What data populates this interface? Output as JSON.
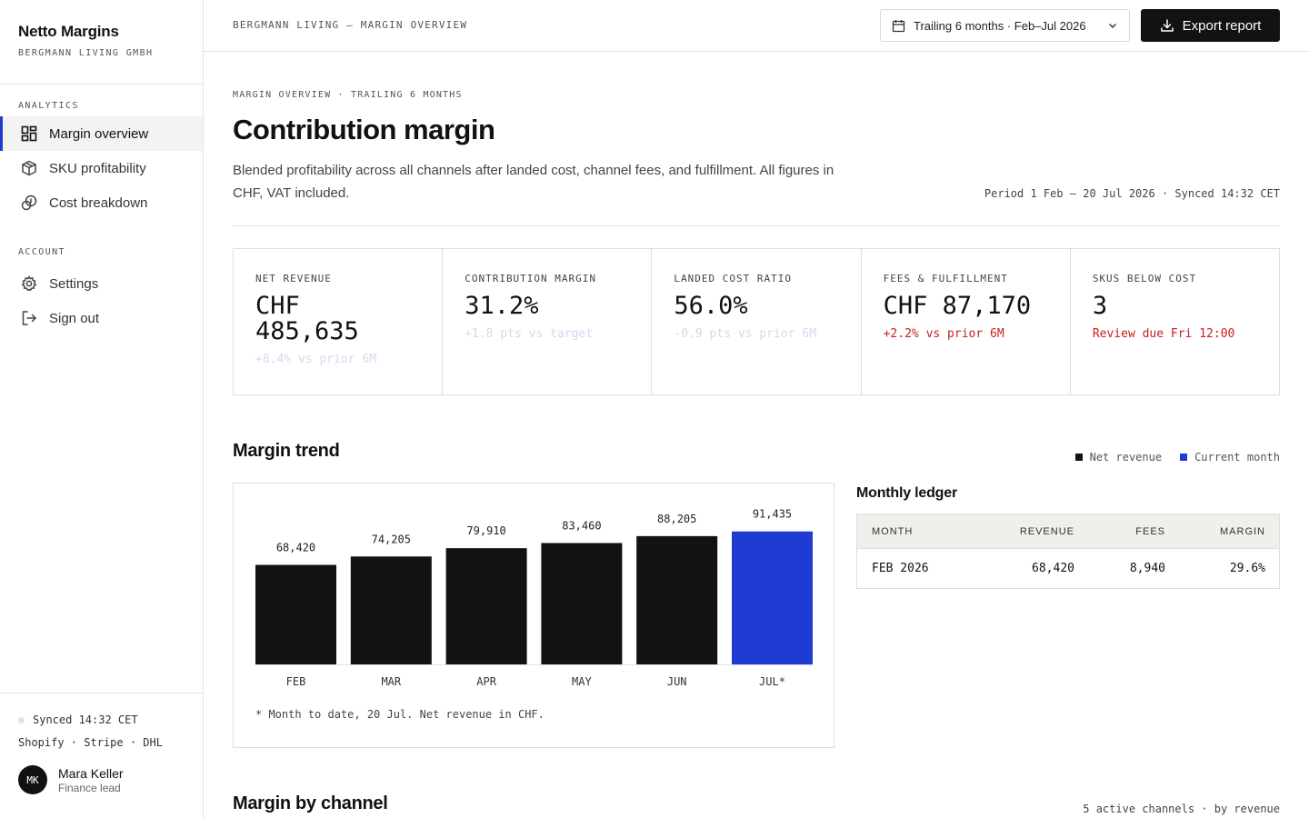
{
  "brand": {
    "name": "Netto Margins",
    "company": "BERGMANN LIVING GMBH"
  },
  "nav": {
    "analytics_label": "ANALYTICS",
    "analytics_items": [
      {
        "label": "Margin overview",
        "icon": "grid-icon",
        "active": true
      },
      {
        "label": "SKU profitability",
        "icon": "box-icon",
        "active": false
      },
      {
        "label": "Cost breakdown",
        "icon": "coins-icon",
        "active": false
      }
    ],
    "account_label": "ACCOUNT",
    "account_items": [
      {
        "label": "Settings",
        "icon": "gear-icon"
      },
      {
        "label": "Sign out",
        "icon": "sign-out-icon"
      }
    ]
  },
  "footer": {
    "sync": "Synced 14:32 CET",
    "integrations": "Shopify · Stripe · DHL",
    "user": {
      "initials": "MK",
      "name": "Mara Keller",
      "role": "Finance lead"
    }
  },
  "topbar": {
    "breadcrumb": "BERGMANN LIVING — MARGIN OVERVIEW",
    "date_range": "Trailing 6 months · Feb–Jul 2026",
    "export_label": "Export report"
  },
  "header": {
    "eyebrow": "MARGIN OVERVIEW · TRAILING 6 MONTHS",
    "title": "Contribution margin",
    "description": "Blended profitability across all channels after landed cost, channel fees, and fulfillment. All figures in CHF, VAT included.",
    "period": "Period 1 Feb – 20 Jul 2026 · Synced 14:32 CET"
  },
  "kpis": [
    {
      "label": "NET REVENUE",
      "value": "CHF 485,635",
      "delta": "+8.4% vs prior 6M",
      "tone": "faint"
    },
    {
      "label": "CONTRIBUTION MARGIN",
      "value": "31.2%",
      "delta": "+1.8 pts vs target",
      "tone": "faint"
    },
    {
      "label": "LANDED COST RATIO",
      "value": "56.0%",
      "delta": "-0.9 pts vs prior 6M",
      "tone": "faint"
    },
    {
      "label": "FEES & FULFILLMENT",
      "value": "CHF 87,170",
      "delta": "+2.2% vs prior 6M",
      "tone": "red"
    },
    {
      "label": "SKUS BELOW COST",
      "value": "3",
      "delta": "Review due Fri 12:00",
      "tone": "red"
    }
  ],
  "trend": {
    "title": "Margin trend",
    "legend": [
      {
        "label": "Net revenue",
        "color": "#121212"
      },
      {
        "label": "Current month",
        "color": "#1f3bd1"
      }
    ],
    "note": "* Month to date, 20 Jul. Net revenue in CHF."
  },
  "chart_data": {
    "type": "bar",
    "categories": [
      "FEB",
      "MAR",
      "APR",
      "MAY",
      "JUN",
      "JUL*"
    ],
    "series": [
      {
        "name": "Net revenue",
        "values": [
          68420,
          74205,
          79910,
          83460,
          88205,
          91435
        ]
      }
    ],
    "value_labels": [
      "68,420",
      "74,205",
      "79,910",
      "83,460",
      "88,205",
      "91,435"
    ],
    "highlight_index": 5,
    "colors": {
      "bar": "#121212",
      "highlight": "#1f3bd1"
    },
    "xlabel": "",
    "ylabel": "",
    "grid": false
  },
  "ledger": {
    "title": "Monthly ledger",
    "columns": [
      "MONTH",
      "REVENUE",
      "FEES",
      "MARGIN"
    ],
    "rows": [
      {
        "month": "FEB 2026",
        "revenue": "68,420",
        "fees": "8,940",
        "margin": "29.6%"
      }
    ]
  },
  "channels": {
    "title": "Margin by channel",
    "meta": "5 active channels · by revenue"
  }
}
